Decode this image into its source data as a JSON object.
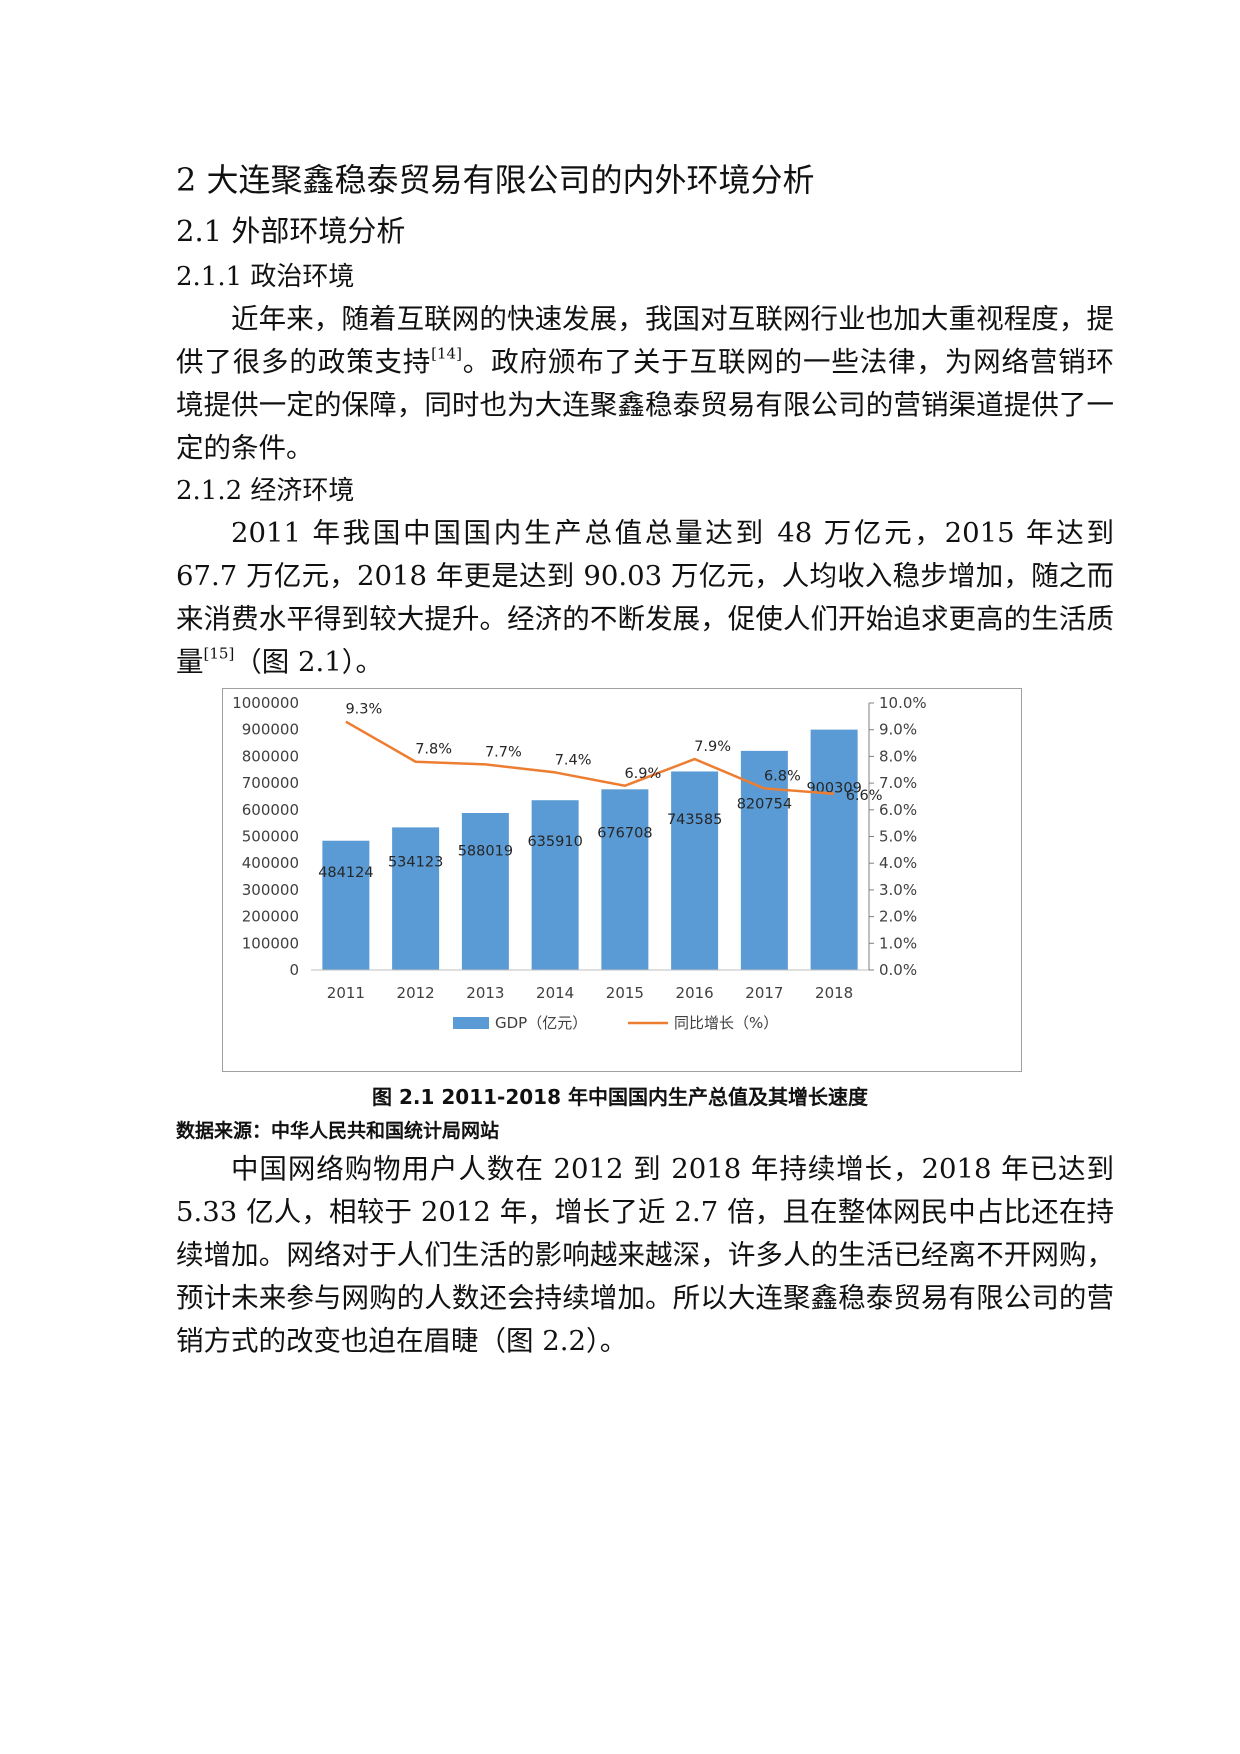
{
  "chapter_heading": "2 大连聚鑫稳泰贸易有限公司的内外环境分析",
  "section_heading": "2.1 外部环境分析",
  "subsection_politics": "2.1.1 政治环境",
  "para_politics": {
    "before_ref": "近年来，随着互联网的快速发展，我国对互联网行业也加大重视程度，提供了很多的政策支持",
    "ref": "[14]",
    "after_ref": "。政府颁布了关于互联网的一些法律，为网络营销环境提供一定的保障，同时也为大连聚鑫稳泰贸易有限公司的营销渠道提供了一定的条件。"
  },
  "subsection_economy": "2.1.2 经济环境",
  "para_economy": {
    "before_ref": "2011 年我国中国国内生产总值总量达到 48 万亿元，2015 年达到 67.7 万亿元，2018 年更是达到 90.03 万亿元，人均收入稳步增加，随之而来消费水平得到较大提升。经济的不断发展，促使人们开始追求更高的生活质量",
    "ref": "[15]",
    "after_ref": "（图 2.1）。"
  },
  "figure_caption": "图 2.1 2011-2018 年中国国内生产总值及其增长速度",
  "data_source": "数据来源：中华人民共和国统计局网站",
  "para_online": "中国网络购物用户人数在 2012 到 2018 年持续增长，2018 年已达到 5.33 亿人，相较于 2012 年，增长了近 2.7 倍，且在整体网民中占比还在持续增加。网络对于人们生活的影响越来越深，许多人的生活已经离不开网购，预计未来参与网购的人数还会持续增加。所以大连聚鑫稳泰贸易有限公司的营销方式的改变也迫在眉睫（图 2.2）。",
  "chart_data": {
    "type": "bar",
    "categories": [
      "2011",
      "2012",
      "2013",
      "2014",
      "2015",
      "2016",
      "2017",
      "2018"
    ],
    "series": [
      {
        "name": "GDP（亿元）",
        "type": "bar",
        "axis": "left",
        "color": "#5b9bd5",
        "values": [
          484124,
          534123,
          588019,
          635910,
          676708,
          743585,
          820754,
          900309
        ],
        "labels": [
          "484124",
          "534123",
          "588019",
          "635910",
          "676708",
          "743585",
          "820754",
          "900309"
        ]
      },
      {
        "name": "同比增长（%）",
        "type": "line",
        "axis": "right",
        "color": "#ed7d31",
        "values": [
          9.3,
          7.8,
          7.7,
          7.4,
          6.9,
          7.9,
          6.8,
          6.6
        ],
        "labels": [
          "9.3%",
          "7.8%",
          "7.7%",
          "7.4%",
          "6.9%",
          "7.9%",
          "6.8%",
          "6.6%"
        ]
      }
    ],
    "y_left": {
      "min": 0,
      "max": 1000000,
      "ticks": [
        "0",
        "100000",
        "200000",
        "300000",
        "400000",
        "500000",
        "600000",
        "700000",
        "800000",
        "900000",
        "1000000"
      ]
    },
    "y_right": {
      "min": 0,
      "max": 10,
      "ticks": [
        "0.0%",
        "1.0%",
        "2.0%",
        "3.0%",
        "4.0%",
        "5.0%",
        "6.0%",
        "7.0%",
        "8.0%",
        "9.0%",
        "10.0%"
      ]
    },
    "title": "",
    "xlabel": "",
    "grid": false,
    "legend_position": "bottom"
  }
}
